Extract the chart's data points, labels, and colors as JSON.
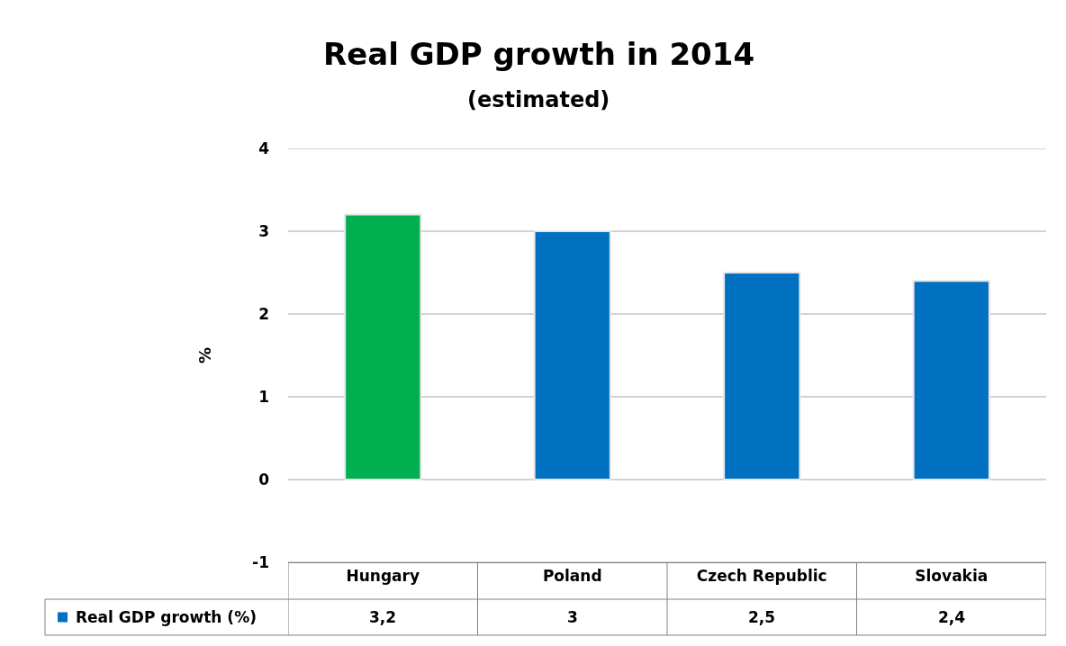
{
  "chart_data": {
    "type": "bar",
    "title": "Real GDP growth in 2014",
    "subtitle": "(estimated)",
    "ylabel": "%",
    "categories": [
      "Hungary",
      "Poland",
      "Czech Republic",
      "Slovakia"
    ],
    "series": [
      {
        "name": "Real GDP growth (%)",
        "color": "#0070c0",
        "colors": [
          "#00b050",
          "#0070c0",
          "#0070c0",
          "#0070c0"
        ],
        "values": [
          3.2,
          3,
          2.5,
          2.4
        ],
        "value_labels": [
          "3,2",
          "3",
          "2,5",
          "2,4"
        ]
      }
    ],
    "ylim": [
      -1,
      4
    ],
    "yticks": [
      -1,
      0,
      1,
      2,
      3,
      4
    ],
    "grid": "y"
  }
}
